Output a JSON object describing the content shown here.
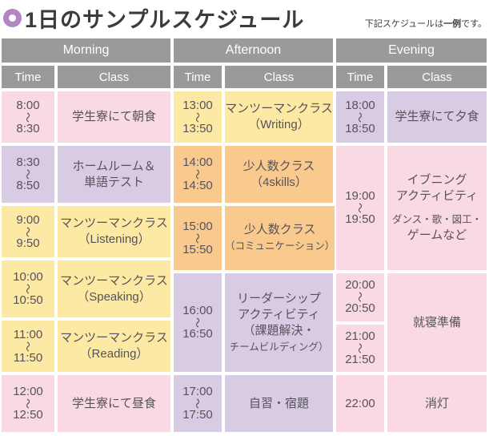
{
  "title": {
    "text": "1日のサンプルスケジュール"
  },
  "note": {
    "prefix": "下記スケジュールは",
    "emphasis": "一例",
    "suffix": "です。"
  },
  "symbols": {
    "tilde": "〜"
  },
  "colors": {
    "pink": "#f9dae4",
    "purple": "#d8cce4",
    "yellow": "#fce9a4",
    "orange": "#f9c98e",
    "header_gray": "#9a999b",
    "bullet_purple": "#b286c4",
    "text_dark": "#3c3a3d",
    "cell_text": "#57525a"
  },
  "columns": [
    {
      "header": "Morning",
      "time_label": "Time",
      "class_label": "Class",
      "rows": [
        {
          "start": "8:00",
          "end": "8:30",
          "lines": [
            "学生寮にて朝食"
          ]
        },
        {
          "start": "8:30",
          "end": "8:50",
          "lines": [
            "ホームルーム＆",
            "単語テスト"
          ]
        },
        {
          "start": "9:00",
          "end": "9:50",
          "lines": [
            "マンツーマンクラス",
            "（Listening）"
          ]
        },
        {
          "start": "10:00",
          "end": "10:50",
          "lines": [
            "マンツーマンクラス",
            "（Speaking）"
          ]
        },
        {
          "start": "11:00",
          "end": "11:50",
          "lines": [
            "マンツーマンクラス",
            "（Reading）"
          ]
        },
        {
          "start": "12:00",
          "end": "12:50",
          "lines": [
            "学生寮にて昼食"
          ]
        }
      ]
    },
    {
      "header": "Afternoon",
      "time_label": "Time",
      "class_label": "Class",
      "rows": [
        {
          "start": "13:00",
          "end": "13:50",
          "lines": [
            "マンツーマンクラス",
            "（Writing）"
          ]
        },
        {
          "start": "14:00",
          "end": "14:50",
          "lines": [
            "少人数クラス",
            "（4skills）"
          ]
        },
        {
          "start": "15:00",
          "end": "15:50",
          "lines": [
            "少人数クラス",
            "（コミュニケーション）"
          ]
        },
        {
          "start": "16:00",
          "end": "16:50",
          "lines": [
            "リーダーシップ",
            "アクティビティ",
            "（課題解決・",
            "チームビルディング）"
          ]
        },
        {
          "start": "17:00",
          "end": "17:50",
          "lines": [
            "自習・宿題"
          ]
        }
      ]
    },
    {
      "header": "Evening",
      "time_label": "Time",
      "class_label": "Class",
      "rows": [
        {
          "start": "18:00",
          "end": "18:50",
          "lines": [
            "学生寮にて夕食"
          ]
        },
        {
          "start": "19:00",
          "end": "19:50",
          "lines": [
            "イブニング",
            "アクティビティ",
            "ダンス・歌・図工・",
            "ゲームなど"
          ]
        },
        {
          "time_slots": [
            {
              "start": "20:00",
              "end": "20:50"
            },
            {
              "start": "21:00",
              "end": "21:50"
            }
          ],
          "lines": [
            "就寝準備"
          ]
        },
        {
          "start": "22:00",
          "lines": [
            "消灯"
          ]
        }
      ]
    }
  ]
}
